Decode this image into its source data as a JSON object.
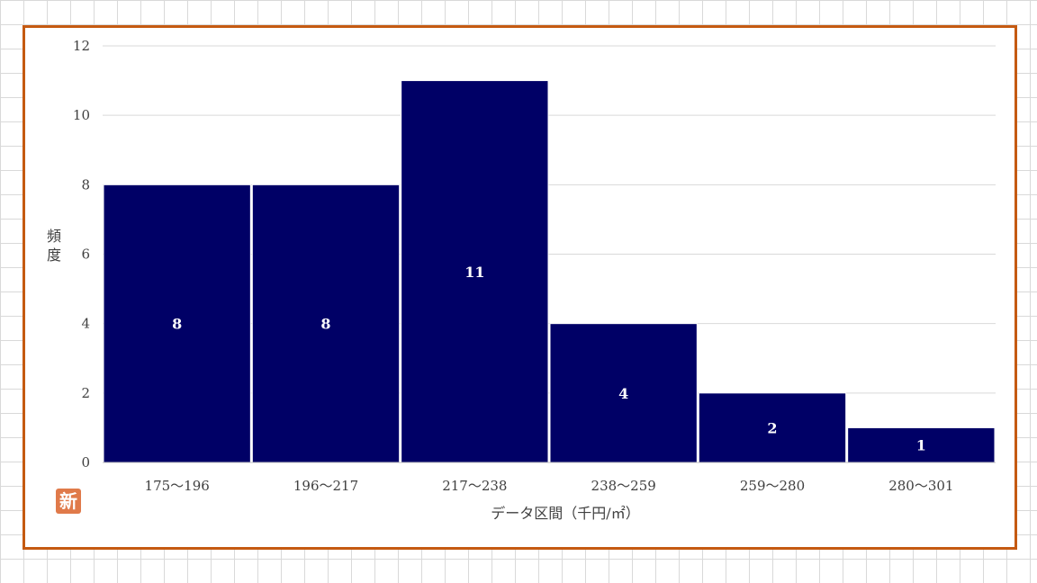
{
  "chart_data": {
    "type": "bar",
    "title": "",
    "xlabel": "データ区間（千円/㎡）",
    "ylabel": "頻度",
    "categories": [
      "175～196",
      "196～217",
      "217～238",
      "238～259",
      "259～280",
      "280～301"
    ],
    "values": [
      8,
      8,
      11,
      4,
      2,
      1
    ],
    "ylim": [
      0,
      12
    ],
    "yticks": [
      "0",
      "2",
      "4",
      "6",
      "8",
      "10",
      "12"
    ],
    "data_labels": [
      "8",
      "8",
      "11",
      "4",
      "2",
      "1"
    ],
    "grid": true,
    "legend": "none",
    "bar_color": "#000066",
    "border_color": "#c55a11"
  },
  "badge": {
    "label": "新"
  }
}
